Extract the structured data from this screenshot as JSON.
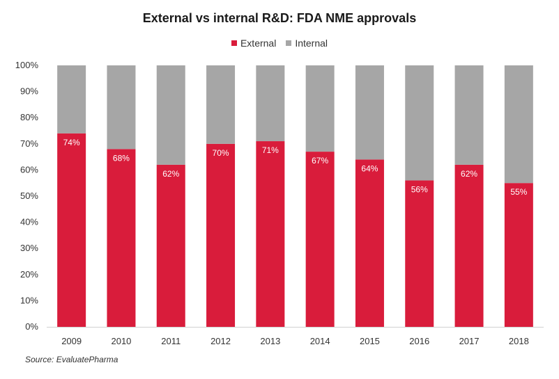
{
  "chart_data": {
    "type": "bar",
    "stacked": true,
    "title": "External vs internal R&D: FDA NME approvals",
    "categories": [
      "2009",
      "2010",
      "2011",
      "2012",
      "2013",
      "2014",
      "2015",
      "2016",
      "2017",
      "2018"
    ],
    "series": [
      {
        "name": "External",
        "color": "#d91c3b",
        "values": [
          74,
          68,
          62,
          70,
          71,
          67,
          64,
          56,
          62,
          55
        ],
        "labels": [
          "74%",
          "68%",
          "62%",
          "70%",
          "71%",
          "67%",
          "64%",
          "56%",
          "62%",
          "55%"
        ]
      },
      {
        "name": "Internal",
        "color": "#a6a6a6",
        "values": [
          26,
          32,
          38,
          30,
          29,
          33,
          36,
          44,
          38,
          45
        ]
      }
    ],
    "ylim": [
      0,
      100
    ],
    "yticks": [
      "0%",
      "10%",
      "20%",
      "30%",
      "40%",
      "50%",
      "60%",
      "70%",
      "80%",
      "90%",
      "100%"
    ],
    "legend_position": "top-center",
    "grid": false,
    "source": "Source: EvaluatePharma"
  }
}
